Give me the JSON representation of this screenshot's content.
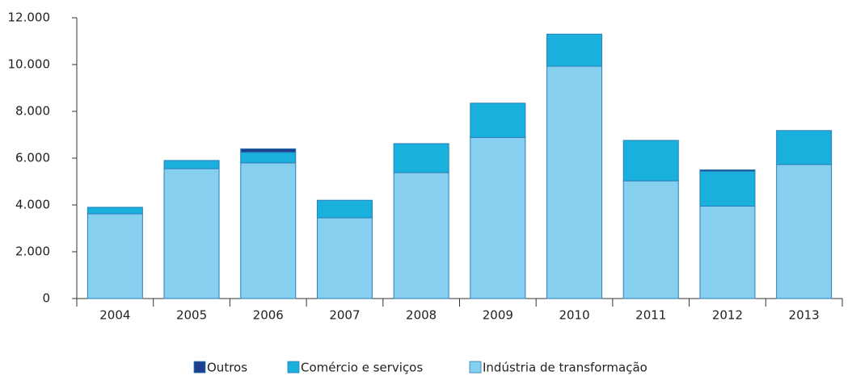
{
  "chart_data": {
    "type": "bar",
    "stacked": true,
    "categories": [
      "2004",
      "2005",
      "2006",
      "2007",
      "2008",
      "2009",
      "2010",
      "2011",
      "2012",
      "2013"
    ],
    "series": [
      {
        "name": "Indústria de transformação",
        "color": "#87cfee",
        "values": [
          3620,
          5550,
          5800,
          3450,
          5380,
          6880,
          9930,
          5030,
          3950,
          5730
        ]
      },
      {
        "name": "Comércio e serviços",
        "color": "#1ab0dd",
        "values": [
          280,
          350,
          450,
          750,
          1240,
          1470,
          1370,
          1730,
          1490,
          1450
        ]
      },
      {
        "name": "Outros",
        "color": "#1c3f8e",
        "values": [
          0,
          0,
          150,
          0,
          0,
          0,
          0,
          0,
          60,
          0
        ]
      }
    ],
    "ylim": [
      0,
      12000
    ],
    "yticks": [
      0,
      {
        "value": 2000,
        "label": "2.000"
      },
      {
        "value": 4000,
        "label": "4.000"
      },
      {
        "value": 6000,
        "label": "6.000"
      },
      {
        "value": 8000,
        "label": "8.000"
      },
      {
        "value": 10000,
        "label": "10.000"
      },
      {
        "value": 12000,
        "label": "12.000"
      }
    ],
    "legend": "bottom"
  }
}
